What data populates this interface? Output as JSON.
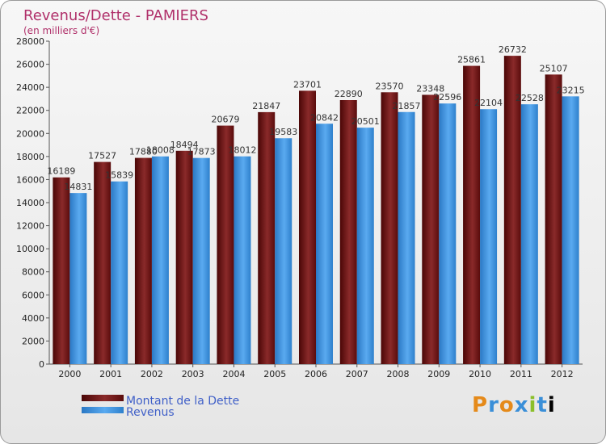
{
  "chart_data": {
    "type": "bar",
    "title": "Revenus/Dette - PAMIERS",
    "subtitle": "(en milliers d'€)",
    "categories": [
      "2000",
      "2001",
      "2002",
      "2003",
      "2004",
      "2005",
      "2006",
      "2007",
      "2008",
      "2009",
      "2010",
      "2011",
      "2012"
    ],
    "series": [
      {
        "name": "Montant de la Dette",
        "color": "#6e1212",
        "values": [
          16189,
          17527,
          17880,
          18494,
          20679,
          21847,
          23701,
          22890,
          23570,
          23348,
          25861,
          26732,
          25107
        ]
      },
      {
        "name": "Revenus",
        "color": "#3d94dc",
        "values": [
          14831,
          15839,
          18008,
          17873,
          18012,
          19583,
          20842,
          20501,
          21857,
          22596,
          22104,
          22528,
          23215
        ]
      }
    ],
    "ylim": [
      0,
      28000
    ],
    "yticks": [
      "0",
      "2000",
      "4000",
      "6000",
      "8000",
      "10000",
      "12000",
      "14000",
      "16000",
      "18000",
      "20000",
      "22000",
      "24000",
      "26000",
      "28000"
    ],
    "grid": false,
    "legend_position": "bottom-left"
  },
  "logo_text": "Proxiti"
}
